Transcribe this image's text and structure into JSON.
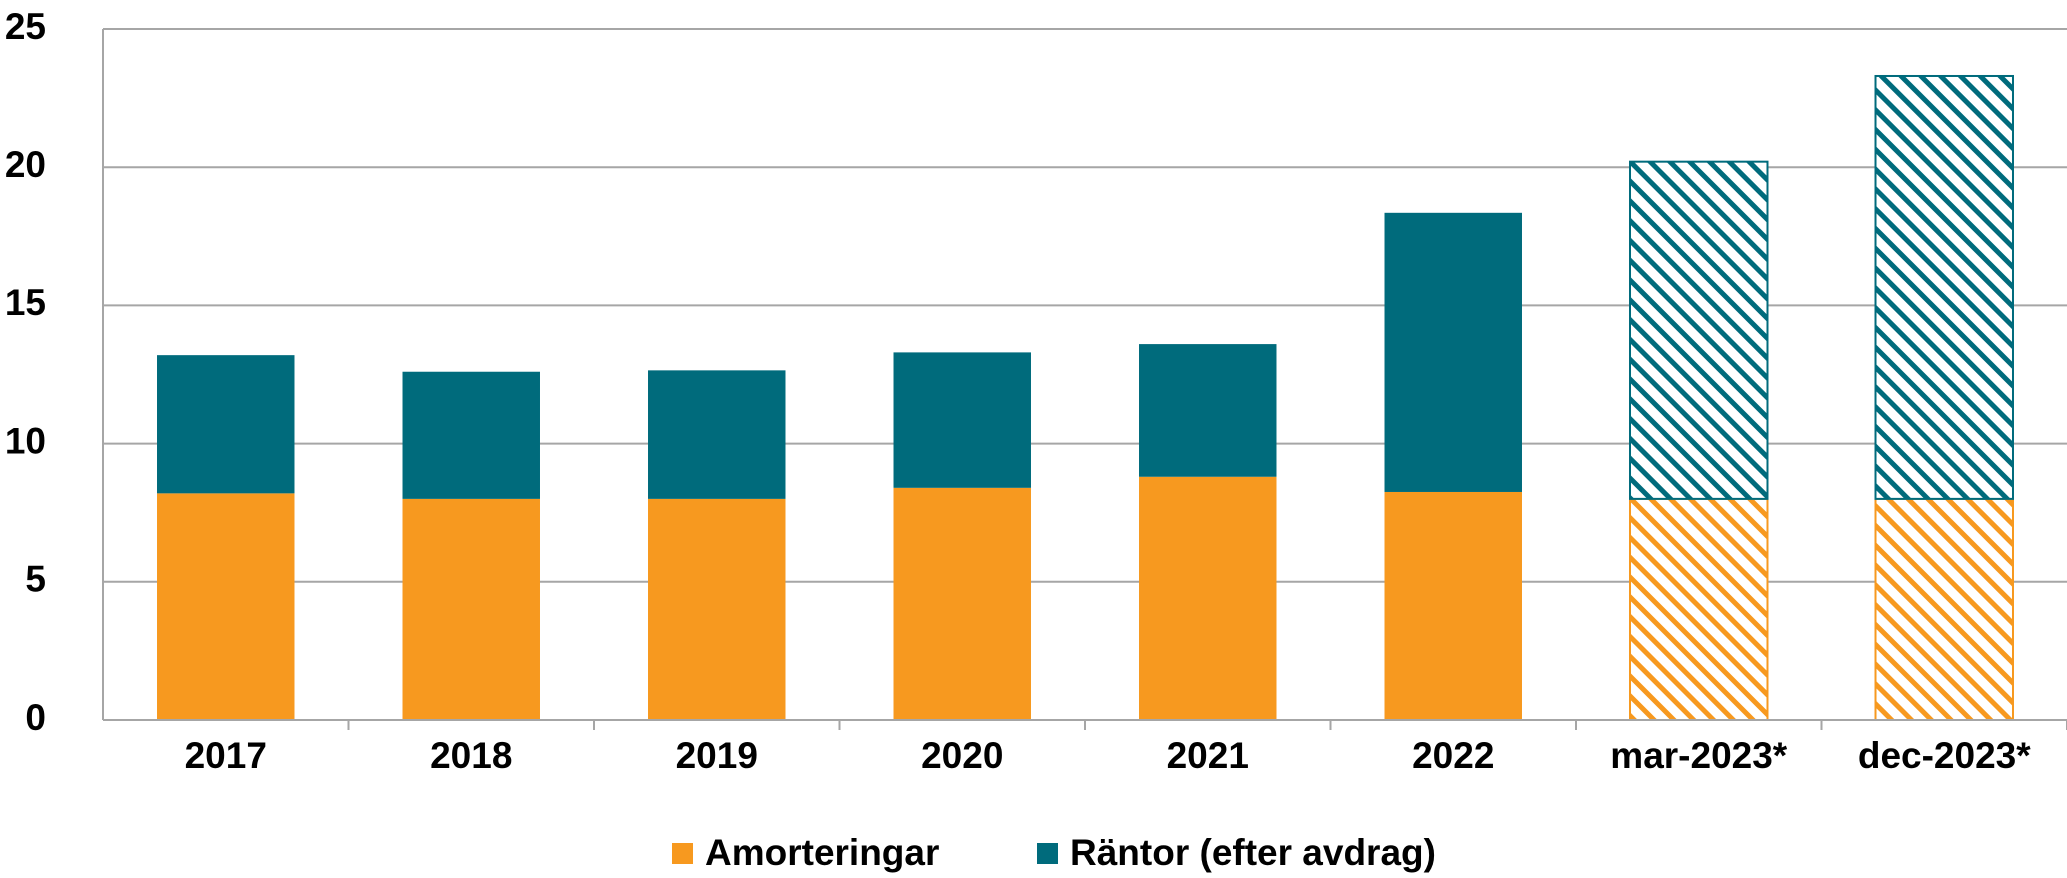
{
  "chart_data": {
    "type": "stacked_bar",
    "categories": [
      "2017",
      "2018",
      "2019",
      "2020",
      "2021",
      "2022",
      "mar-2023*",
      "dec-2023*"
    ],
    "series": [
      {
        "name": "Amorteringar",
        "color": "#f7991f",
        "values": [
          8.2,
          8.0,
          8.0,
          8.4,
          8.8,
          8.25,
          8.0,
          8.0
        ]
      },
      {
        "name": "Räntor (efter avdrag)",
        "color": "#006b7c",
        "values": [
          5.0,
          4.6,
          4.65,
          4.9,
          4.8,
          10.1,
          12.2,
          15.3
        ]
      }
    ],
    "hatched": [
      false,
      false,
      false,
      false,
      false,
      false,
      true,
      true
    ],
    "ylim": [
      0,
      25
    ],
    "yticks": [
      0,
      5,
      10,
      15,
      20,
      25
    ],
    "grid": true,
    "legend": "bottom"
  }
}
